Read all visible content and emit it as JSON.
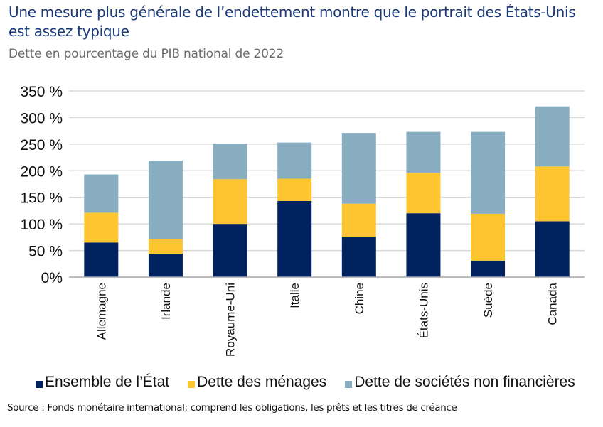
{
  "header": {
    "title": "Une mesure plus générale de l’endettement montre que le portrait des États-Unis est assez typique",
    "subtitle": "Dette en pourcentage du PIB national de 2022"
  },
  "footer": {
    "source": "Source : Fonds monétaire international; comprend les obligations, les prêts et les titres de créance"
  },
  "colors": {
    "gov": "#00235f",
    "households": "#fdc52f",
    "corporates": "#89adc0",
    "grid": "#d9d9d9",
    "axis": "#a6a6a6"
  },
  "chart_data": {
    "type": "bar",
    "stacked": true,
    "title": "Une mesure plus générale de l’endettement montre que le portrait des États-Unis est assez typique",
    "subtitle": "Dette en pourcentage du PIB national de 2022",
    "xlabel": "",
    "ylabel": "",
    "ylim": [
      0,
      350
    ],
    "yticks": [
      0,
      50,
      100,
      150,
      200,
      250,
      300,
      350
    ],
    "ytick_labels": [
      "0%",
      "50 %",
      "100 %",
      "150 %",
      "200 %",
      "250 %",
      "300 %",
      "350 %"
    ],
    "grid": true,
    "legend_position": "bottom",
    "categories": [
      "Allemagne",
      "Irlande",
      "Royaume-Uni",
      "Italie",
      "Chine",
      "États-Unis",
      "Suède",
      "Canada"
    ],
    "series": [
      {
        "name": "Ensemble de l’État",
        "color_key": "gov",
        "values": [
          65,
          44,
          100,
          143,
          76,
          120,
          31,
          105
        ]
      },
      {
        "name": "Dette des ménages",
        "color_key": "households",
        "values": [
          56,
          27,
          84,
          42,
          62,
          76,
          88,
          103
        ]
      },
      {
        "name": "Dette de sociétés non financières",
        "color_key": "corporates",
        "values": [
          72,
          148,
          67,
          68,
          133,
          77,
          154,
          113
        ]
      }
    ]
  }
}
